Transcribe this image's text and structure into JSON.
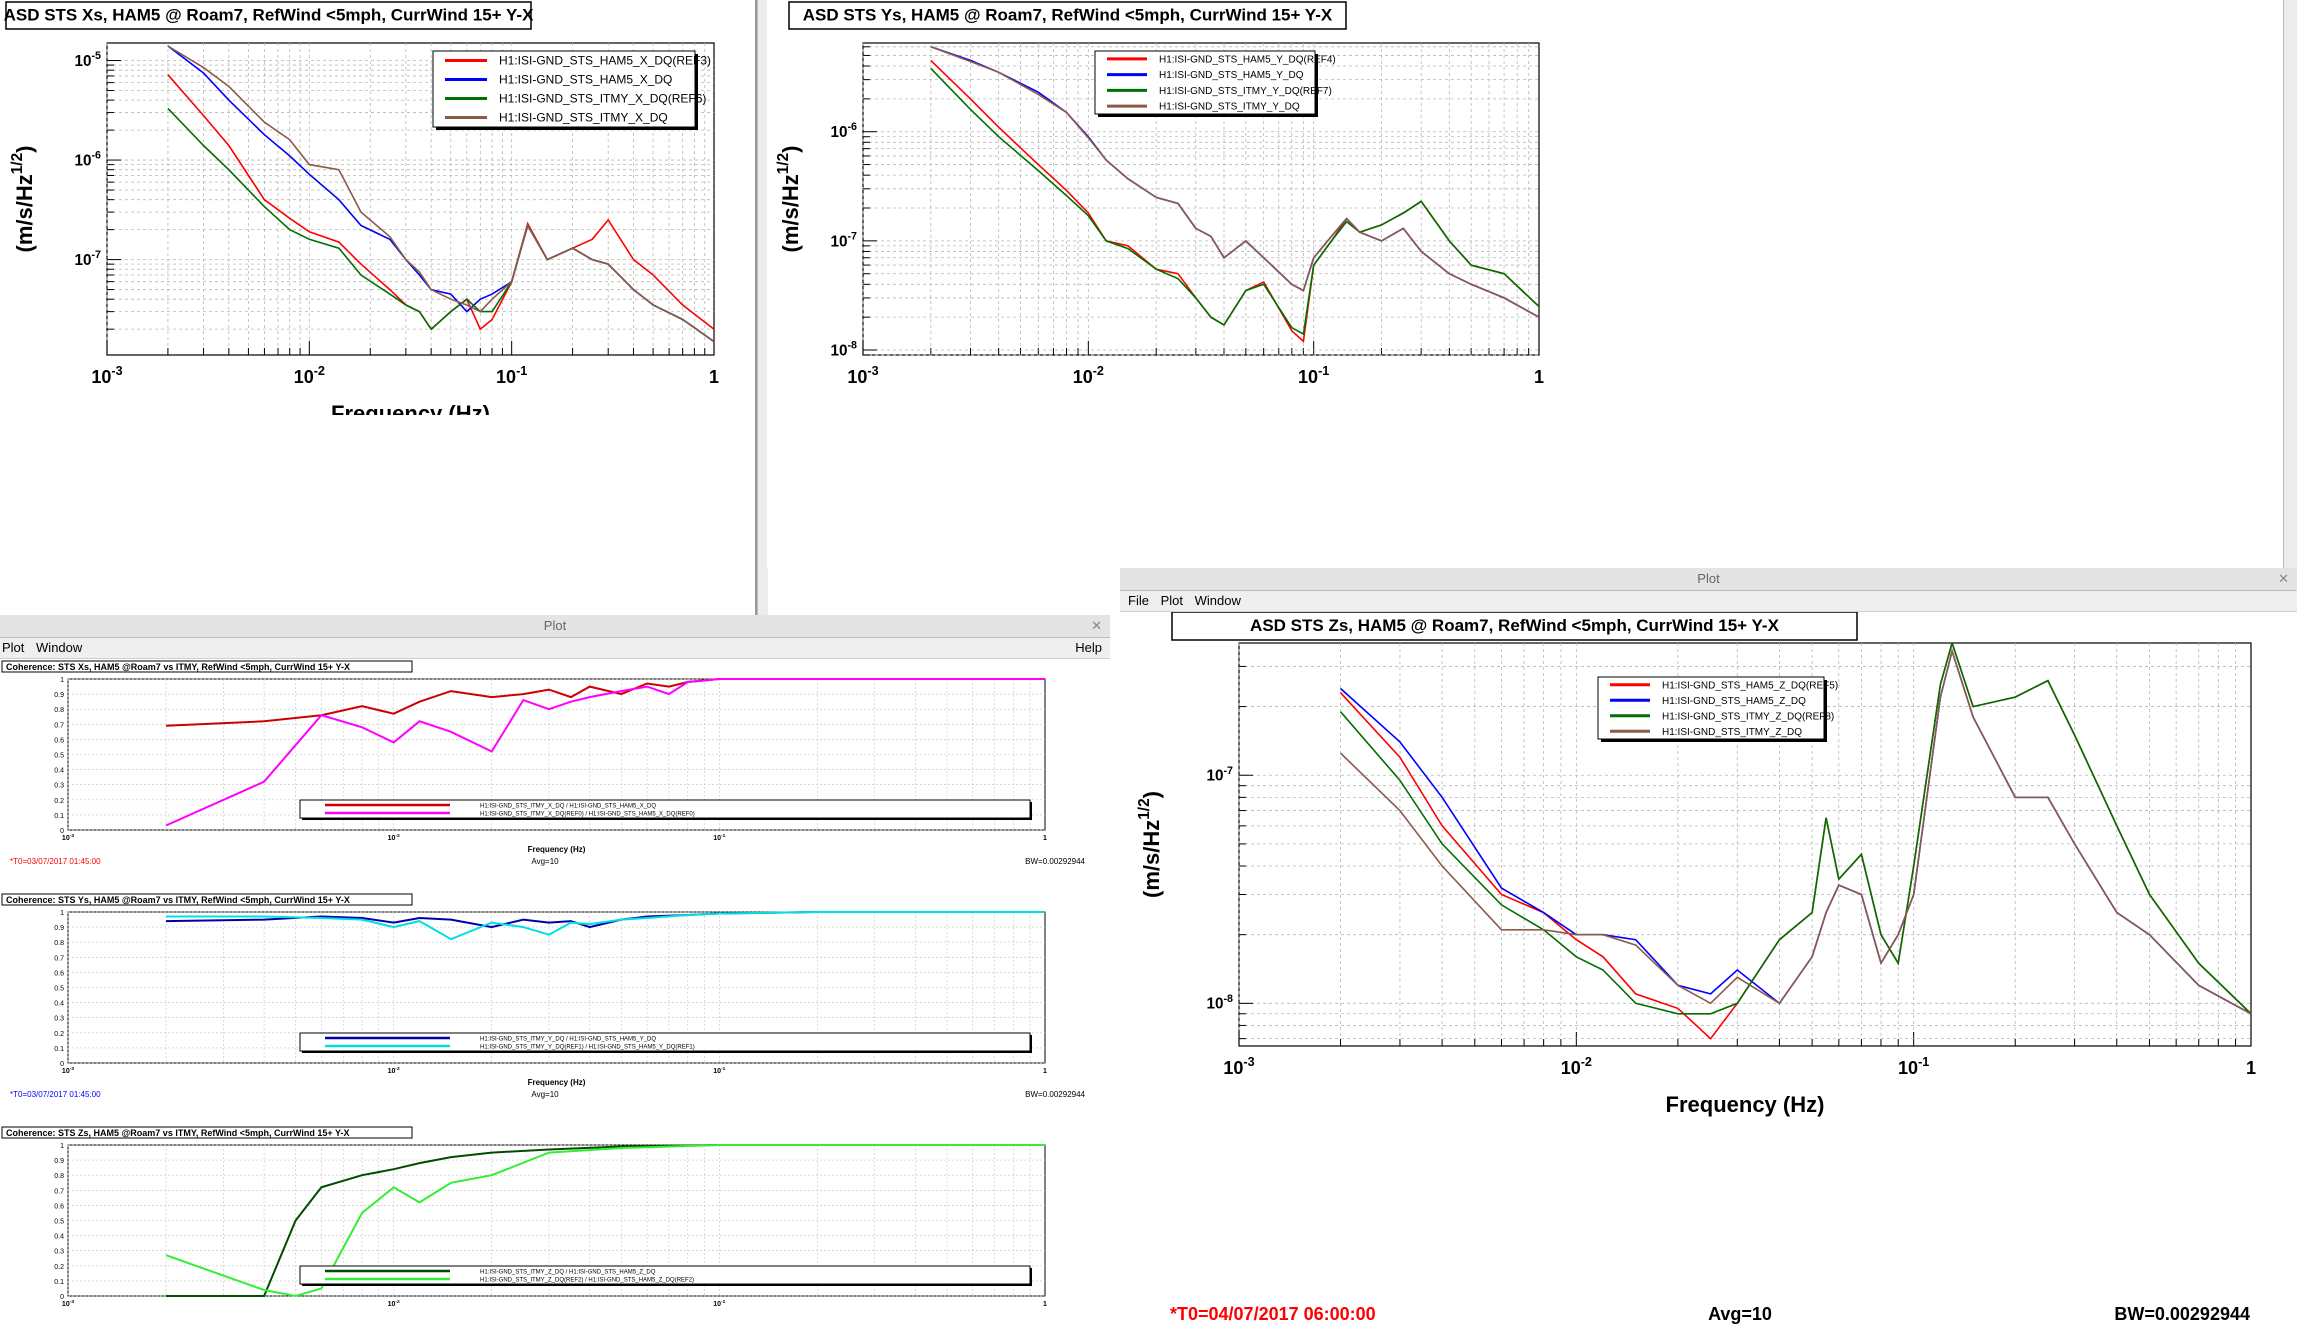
{
  "windows": {
    "plot_window_title": "Plot",
    "menus": {
      "file": "File",
      "plot": "Plot",
      "window": "Window",
      "help": "Help"
    }
  },
  "colors": {
    "red": "#ff0000",
    "blue": "#0000ff",
    "green": "#007000",
    "brown": "#8b5a4a",
    "magenta": "#ff00ff",
    "cyan": "#00e0e0",
    "darkred": "#cc0000",
    "darkblue": "#0000aa",
    "darkgreen": "#004d00",
    "lightgreen": "#33ee33"
  },
  "icons": {
    "close": "close-icon",
    "minimize": "minimize-icon",
    "maximize": "maximize-icon"
  },
  "chart_data": [
    {
      "id": "asd_x",
      "type": "line",
      "title": "ASD STS Xs, HAM5 @ Roam7, RefWind <5mph, CurrWind 15+ Y-X",
      "xlabel": "Frequency (Hz)",
      "ylabel": "(m/s/Hz^1/2)",
      "xscale": "log",
      "yscale": "log",
      "xlim": [
        0.001,
        1
      ],
      "ylim": [
        1.1e-08,
        1.5e-05
      ],
      "x_ticks": [
        "10-3",
        "10-2",
        "10-1",
        "1"
      ],
      "y_ticks": [
        "10-7",
        "10-6",
        "10-5"
      ],
      "grid": true,
      "legend_position": "top-right",
      "x": [
        0.002,
        0.003,
        0.004,
        0.006,
        0.008,
        0.01,
        0.014,
        0.018,
        0.025,
        0.03,
        0.035,
        0.04,
        0.05,
        0.06,
        0.07,
        0.08,
        0.1,
        0.12,
        0.15,
        0.2,
        0.25,
        0.3,
        0.4,
        0.5,
        0.7,
        1.0
      ],
      "series": [
        {
          "name": "H1:ISI-GND_STS_HAM5_X_DQ(REF3)",
          "color": "#ff0000",
          "values": [
            7.2e-06,
            2.8e-06,
            1.4e-06,
            4e-07,
            2.6e-07,
            1.9e-07,
            1.5e-07,
            9e-08,
            5e-08,
            3.5e-08,
            3e-08,
            2e-08,
            3e-08,
            4e-08,
            2e-08,
            2.5e-08,
            6e-08,
            2.3e-07,
            1e-07,
            1.3e-07,
            1.6e-07,
            2.5e-07,
            1e-07,
            7e-08,
            3.5e-08,
            2e-08
          ]
        },
        {
          "name": "H1:ISI-GND_STS_HAM5_X_DQ",
          "color": "#0000ff",
          "values": [
            1.4e-05,
            7.5e-06,
            4e-06,
            1.8e-06,
            1.1e-06,
            7.2e-07,
            4e-07,
            2.2e-07,
            1.6e-07,
            1e-07,
            7e-08,
            5e-08,
            4.5e-08,
            3e-08,
            4e-08,
            4.5e-08,
            6e-08,
            2.2e-07,
            1e-07,
            1.3e-07,
            1e-07,
            9e-08,
            5e-08,
            3.5e-08,
            2.5e-08,
            1.5e-08
          ]
        },
        {
          "name": "H1:ISI-GND_STS_ITMY_X_DQ(REF6)",
          "color": "#007000",
          "values": [
            3.3e-06,
            1.4e-06,
            8e-07,
            3.4e-07,
            2e-07,
            1.6e-07,
            1.3e-07,
            7e-08,
            4.5e-08,
            3.5e-08,
            3e-08,
            2e-08,
            3e-08,
            4e-08,
            3e-08,
            3e-08,
            6e-08,
            2.2e-07,
            1e-07,
            1.3e-07,
            1e-07,
            9e-08,
            5e-08,
            3.5e-08,
            2.5e-08,
            1.5e-08
          ]
        },
        {
          "name": "H1:ISI-GND_STS_ITMY_X_DQ",
          "color": "#8b5a4a",
          "values": [
            1.4e-05,
            8.5e-06,
            5.5e-06,
            2.4e-06,
            1.6e-06,
            9e-07,
            8e-07,
            3e-07,
            1.7e-07,
            1e-07,
            7.5e-08,
            5e-08,
            4e-08,
            3.5e-08,
            3e-08,
            4e-08,
            6e-08,
            2.2e-07,
            1e-07,
            1.3e-07,
            1e-07,
            9e-08,
            5e-08,
            3.5e-08,
            2.5e-08,
            1.5e-08
          ]
        }
      ]
    },
    {
      "id": "asd_y",
      "type": "line",
      "title": "ASD STS Ys, HAM5 @ Roam7, RefWind <5mph, CurrWind 15+ Y-X",
      "xlabel": "",
      "ylabel": "(m/s/Hz^1/2)",
      "xscale": "log",
      "yscale": "log",
      "xlim": [
        0.001,
        1
      ],
      "ylim": [
        9e-09,
        6.5e-06
      ],
      "x_ticks": [
        "10-3",
        "10-2",
        "10-1",
        "1"
      ],
      "y_ticks": [
        "10-8",
        "10-7",
        "10-6"
      ],
      "grid": true,
      "legend_position": "top-right",
      "x": [
        0.002,
        0.003,
        0.004,
        0.006,
        0.008,
        0.01,
        0.012,
        0.015,
        0.02,
        0.025,
        0.03,
        0.035,
        0.04,
        0.05,
        0.06,
        0.08,
        0.09,
        0.1,
        0.12,
        0.14,
        0.16,
        0.2,
        0.25,
        0.3,
        0.4,
        0.5,
        0.7,
        1.0
      ],
      "series": [
        {
          "name": "H1:ISI-GND_STS_HAM5_Y_DQ(REF4)",
          "color": "#ff0000",
          "values": [
            4.5e-06,
            2e-06,
            1.1e-06,
            5e-07,
            2.9e-07,
            1.8e-07,
            1e-07,
            9e-08,
            5.5e-08,
            5e-08,
            3e-08,
            2e-08,
            1.7e-08,
            3.5e-08,
            4.2e-08,
            1.5e-08,
            1.2e-08,
            6e-08,
            1e-07,
            1.6e-07,
            1.2e-07,
            1.4e-07,
            1.8e-07,
            2.3e-07,
            1e-07,
            6e-08,
            5e-08,
            2.5e-08
          ]
        },
        {
          "name": "H1:ISI-GND_STS_HAM5_Y_DQ",
          "color": "#0000ff",
          "values": [
            6e-06,
            4.5e-06,
            3.5e-06,
            2.3e-06,
            1.5e-06,
            9e-07,
            5.5e-07,
            3.7e-07,
            2.5e-07,
            2.2e-07,
            1.3e-07,
            1.1e-07,
            7e-08,
            1e-07,
            7e-08,
            4e-08,
            3.5e-08,
            7e-08,
            1.1e-07,
            1.6e-07,
            1.2e-07,
            1e-07,
            1.3e-07,
            8e-08,
            5e-08,
            4e-08,
            3e-08,
            2e-08
          ]
        },
        {
          "name": "H1:ISI-GND_STS_ITMY_Y_DQ(REF7)",
          "color": "#007000",
          "values": [
            3.8e-06,
            1.6e-06,
            9e-07,
            4.4e-07,
            2.6e-07,
            1.7e-07,
            1e-07,
            8.5e-08,
            5.5e-08,
            4.5e-08,
            3e-08,
            2e-08,
            1.7e-08,
            3.5e-08,
            4e-08,
            1.6e-08,
            1.4e-08,
            6e-08,
            1e-07,
            1.5e-07,
            1.2e-07,
            1.4e-07,
            1.8e-07,
            2.3e-07,
            1e-07,
            6e-08,
            5e-08,
            2.5e-08
          ]
        },
        {
          "name": "H1:ISI-GND_STS_ITMY_Y_DQ",
          "color": "#8b5a4a",
          "values": [
            6e-06,
            4.4e-06,
            3.5e-06,
            2.2e-06,
            1.5e-06,
            8.8e-07,
            5.5e-07,
            3.7e-07,
            2.5e-07,
            2.2e-07,
            1.3e-07,
            1.1e-07,
            7e-08,
            1e-07,
            7e-08,
            4e-08,
            3.5e-08,
            7e-08,
            1.1e-07,
            1.6e-07,
            1.2e-07,
            1e-07,
            1.3e-07,
            8e-08,
            5e-08,
            4e-08,
            3e-08,
            2e-08
          ]
        }
      ]
    },
    {
      "id": "asd_z",
      "type": "line",
      "title": "ASD STS Zs, HAM5 @ Roam7, RefWind <5mph, CurrWind 15+ Y-X",
      "xlabel": "Frequency (Hz)",
      "ylabel": "(m/s/Hz^1/2)",
      "xscale": "log",
      "yscale": "log",
      "xlim": [
        0.001,
        1
      ],
      "ylim": [
        6.5e-09,
        3.8e-07
      ],
      "x_ticks": [
        "10-3",
        "10-2",
        "10-1",
        "1"
      ],
      "y_ticks": [
        "10-8",
        "10-7"
      ],
      "grid": true,
      "legend_position": "top-right",
      "x": [
        0.002,
        0.003,
        0.004,
        0.006,
        0.008,
        0.01,
        0.012,
        0.015,
        0.02,
        0.025,
        0.03,
        0.04,
        0.05,
        0.055,
        0.06,
        0.07,
        0.08,
        0.09,
        0.1,
        0.12,
        0.13,
        0.15,
        0.2,
        0.25,
        0.3,
        0.4,
        0.5,
        0.7,
        1.0
      ],
      "series": [
        {
          "name": "H1:ISI-GND_STS_HAM5_Z_DQ(REF5)",
          "color": "#ff0000",
          "values": [
            2.3e-07,
            1.2e-07,
            6e-08,
            3e-08,
            2.5e-08,
            1.9e-08,
            1.6e-08,
            1.1e-08,
            9.5e-09,
            7e-09,
            1e-08,
            1.9e-08,
            2.5e-08,
            6.5e-08,
            3.5e-08,
            4.5e-08,
            2e-08,
            1.5e-08,
            4e-08,
            2.5e-07,
            3.8e-07,
            2e-07,
            2.2e-07,
            2.6e-07,
            1.5e-07,
            6e-08,
            3e-08,
            1.5e-08,
            9e-09
          ]
        },
        {
          "name": "H1:ISI-GND_STS_HAM5_Z_DQ",
          "color": "#0000ff",
          "values": [
            2.4e-07,
            1.4e-07,
            8e-08,
            3.2e-08,
            2.5e-08,
            2e-08,
            2e-08,
            1.9e-08,
            1.2e-08,
            1.1e-08,
            1.4e-08,
            1e-08,
            1.6e-08,
            2.5e-08,
            3.3e-08,
            3e-08,
            1.5e-08,
            2e-08,
            3e-08,
            2.2e-07,
            3.5e-07,
            1.8e-07,
            8e-08,
            8e-08,
            5e-08,
            2.5e-08,
            2e-08,
            1.2e-08,
            9e-09
          ]
        },
        {
          "name": "H1:ISI-GND_STS_ITMY_Z_DQ(REF8)",
          "color": "#007000",
          "values": [
            1.9e-07,
            9.5e-08,
            5e-08,
            2.7e-08,
            2.1e-08,
            1.6e-08,
            1.4e-08,
            1e-08,
            9e-09,
            9e-09,
            1e-08,
            1.9e-08,
            2.5e-08,
            6.5e-08,
            3.5e-08,
            4.5e-08,
            2e-08,
            1.5e-08,
            4e-08,
            2.5e-07,
            3.8e-07,
            2e-07,
            2.2e-07,
            2.6e-07,
            1.5e-07,
            6e-08,
            3e-08,
            1.5e-08,
            9e-09
          ]
        },
        {
          "name": "H1:ISI-GND_STS_ITMY_Z_DQ",
          "color": "#8b5a4a",
          "values": [
            1.25e-07,
            7e-08,
            4e-08,
            2.1e-08,
            2.1e-08,
            2e-08,
            2e-08,
            1.8e-08,
            1.2e-08,
            1e-08,
            1.3e-08,
            1e-08,
            1.6e-08,
            2.5e-08,
            3.3e-08,
            3e-08,
            1.5e-08,
            2e-08,
            3e-08,
            2.2e-07,
            3.5e-07,
            1.8e-07,
            8e-08,
            8e-08,
            5e-08,
            2.5e-08,
            2e-08,
            1.2e-08,
            9e-09
          ]
        }
      ],
      "footer": {
        "t0": "*T0=04/07/2017 06:00:00",
        "avg": "Avg=10",
        "bw": "BW=0.00292944"
      }
    },
    {
      "id": "coh_x",
      "type": "line",
      "title": "Coherence: STS Xs, HAM5 @Roam7 vs ITMY, RefWind <5mph, CurrWind 15+ Y-X",
      "xlabel": "Frequency (Hz)",
      "ylabel": "Coherence",
      "xscale": "log",
      "xlim": [
        0.001,
        1
      ],
      "ylim": [
        0,
        1
      ],
      "x_ticks": [
        "10-3",
        "10-2",
        "10-1",
        "1"
      ],
      "y_ticks": [
        "0",
        "0.1",
        "0.2",
        "0.3",
        "0.4",
        "0.5",
        "0.6",
        "0.7",
        "0.8",
        "0.9",
        "1"
      ],
      "grid": true,
      "legend_position": "bottom-right",
      "x": [
        0.002,
        0.004,
        0.006,
        0.008,
        0.01,
        0.012,
        0.015,
        0.02,
        0.025,
        0.03,
        0.035,
        0.04,
        0.05,
        0.06,
        0.07,
        0.08,
        0.1,
        0.2,
        0.5,
        1.0
      ],
      "series": [
        {
          "name": "H1:ISI-GND_STS_ITMY_X_DQ / H1:ISI-GND_STS_HAM5_X_DQ",
          "color": "#cc0000",
          "values": [
            0.69,
            0.72,
            0.76,
            0.82,
            0.77,
            0.85,
            0.92,
            0.88,
            0.9,
            0.93,
            0.88,
            0.95,
            0.9,
            0.97,
            0.95,
            0.98,
            1.0,
            1.0,
            1.0,
            1.0
          ]
        },
        {
          "name": "H1:ISI-GND_STS_ITMY_X_DQ(REF0) / H1:ISI-GND_STS_HAM5_X_DQ(REF0)",
          "color": "#ff00ff",
          "values": [
            0.03,
            0.32,
            0.76,
            0.68,
            0.58,
            0.72,
            0.65,
            0.52,
            0.86,
            0.8,
            0.85,
            0.88,
            0.92,
            0.95,
            0.9,
            0.98,
            1.0,
            1.0,
            1.0,
            1.0
          ]
        }
      ],
      "footer": {
        "t0": "*T0=03/07/2017 01:45:00",
        "avg": "Avg=10",
        "bw": "BW=0.00292944"
      }
    },
    {
      "id": "coh_y",
      "type": "line",
      "title": "Coherence: STS Ys, HAM5 @Roam7 vs ITMY, RefWind <5mph, CurrWind 15+ Y-X",
      "xlabel": "Frequency (Hz)",
      "ylabel": "Coherence",
      "xscale": "log",
      "xlim": [
        0.001,
        1
      ],
      "ylim": [
        0,
        1
      ],
      "x_ticks": [
        "10-3",
        "10-2",
        "10-1",
        "1"
      ],
      "y_ticks": [
        "0",
        "0.1",
        "0.2",
        "0.3",
        "0.4",
        "0.5",
        "0.6",
        "0.7",
        "0.8",
        "0.9",
        "1"
      ],
      "grid": true,
      "legend_position": "bottom-right",
      "x": [
        0.002,
        0.004,
        0.006,
        0.008,
        0.01,
        0.012,
        0.015,
        0.02,
        0.025,
        0.03,
        0.035,
        0.04,
        0.05,
        0.06,
        0.08,
        0.1,
        0.2,
        0.5,
        1.0
      ],
      "series": [
        {
          "name": "H1:ISI-GND_STS_ITMY_Y_DQ / H1:ISI-GND_STS_HAM5_Y_DQ",
          "color": "#0000aa",
          "values": [
            0.94,
            0.95,
            0.97,
            0.96,
            0.93,
            0.96,
            0.95,
            0.9,
            0.95,
            0.93,
            0.94,
            0.9,
            0.95,
            0.97,
            0.98,
            0.99,
            1.0,
            1.0,
            1.0
          ]
        },
        {
          "name": "H1:ISI-GND_STS_ITMY_Y_DQ(REF1) / H1:ISI-GND_STS_HAM5_Y_DQ(REF1)",
          "color": "#00e0e0",
          "values": [
            0.97,
            0.97,
            0.96,
            0.95,
            0.9,
            0.94,
            0.82,
            0.93,
            0.9,
            0.85,
            0.93,
            0.92,
            0.95,
            0.96,
            0.98,
            0.99,
            1.0,
            1.0,
            1.0
          ]
        }
      ],
      "footer": {
        "t0": "*T0=03/07/2017 01:45:00",
        "avg": "Avg=10",
        "bw": "BW=0.00292944"
      }
    },
    {
      "id": "coh_z",
      "type": "line",
      "title": "Coherence: STS Zs, HAM5 @Roam7 vs ITMY, RefWind <5mph, CurrWind 15+ Y-X",
      "xlabel": "",
      "ylabel": "Coherence",
      "xscale": "log",
      "xlim": [
        0.001,
        1
      ],
      "ylim": [
        0,
        1
      ],
      "x_ticks": [
        "10-3",
        "10-2",
        "10-1",
        "1"
      ],
      "y_ticks": [
        "0",
        "0.1",
        "0.2",
        "0.3",
        "0.4",
        "0.5",
        "0.6",
        "0.7",
        "0.8",
        "0.9",
        "1"
      ],
      "grid": true,
      "legend_position": "bottom-right",
      "x": [
        0.002,
        0.004,
        0.005,
        0.006,
        0.008,
        0.01,
        0.012,
        0.015,
        0.02,
        0.03,
        0.05,
        0.1,
        0.2,
        0.5,
        1.0
      ],
      "series": [
        {
          "name": "H1:ISI-GND_STS_ITMY_Z_DQ / H1:ISI-GND_STS_HAM5_Z_DQ",
          "color": "#004d00",
          "values": [
            0.0,
            0.0,
            0.5,
            0.72,
            0.8,
            0.84,
            0.88,
            0.92,
            0.95,
            0.97,
            0.99,
            1.0,
            1.0,
            1.0,
            1.0
          ]
        },
        {
          "name": "H1:ISI-GND_STS_ITMY_Z_DQ(REF2) / H1:ISI-GND_STS_HAM5_Z_DQ(REF2)",
          "color": "#33ee33",
          "values": [
            0.27,
            0.04,
            0.0,
            0.05,
            0.55,
            0.72,
            0.62,
            0.75,
            0.8,
            0.95,
            0.98,
            1.0,
            1.0,
            1.0,
            1.0
          ]
        }
      ]
    }
  ]
}
